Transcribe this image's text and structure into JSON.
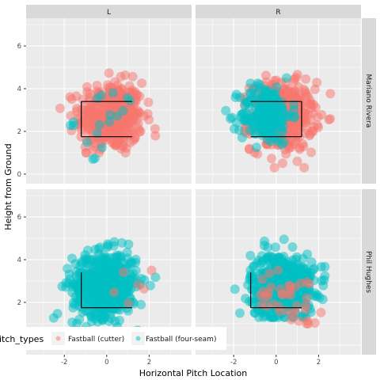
{
  "chart_data": {
    "type": "scatter",
    "xlabel": "Horizontal Pitch Location",
    "ylabel": "Height from Ground",
    "xlim": [
      -3.8,
      4.0
    ],
    "ylim": [
      -0.45,
      7.3
    ],
    "x_ticks": [
      -2,
      0,
      2
    ],
    "y_ticks": [
      0,
      2,
      4,
      6
    ],
    "grid": true,
    "facet_cols": [
      "L",
      "R"
    ],
    "facet_rows": [
      "Mariano Rivera",
      "Phil Hughes"
    ],
    "legend": {
      "title": "pitch_types",
      "position": "bottom-left",
      "entries": [
        {
          "label": "Fastball (cutter)",
          "color": "#F8766D"
        },
        {
          "label": "Fastball (four-seam)",
          "color": "#00BFC4"
        }
      ]
    },
    "strike_zone": {
      "x": [
        -1.2,
        1.2
      ],
      "y": [
        1.75,
        3.4
      ]
    },
    "panels": [
      {
        "row": "Mariano Rivera",
        "col": "L",
        "zone_sides": "L,T,B",
        "series": [
          {
            "name": "Fastball (cutter)",
            "n": 420,
            "cx": 0.2,
            "cy": 2.7,
            "sx": 0.75,
            "sy": 0.8,
            "x_range": [
              -2.2,
              2.5
            ],
            "y_range": [
              1.0,
              5.1
            ]
          },
          {
            "name": "Fastball (four-seam)",
            "n": 18,
            "cx": 0.1,
            "cy": 2.6,
            "sx": 0.8,
            "sy": 0.8,
            "x_range": [
              -1.8,
              2.0
            ],
            "y_range": [
              0.7,
              3.8
            ]
          }
        ]
      },
      {
        "row": "Mariano Rivera",
        "col": "R",
        "zone_sides": "R,T,B",
        "series": [
          {
            "name": "Fastball (cutter)",
            "n": 420,
            "cx": 0.3,
            "cy": 2.7,
            "sx": 0.75,
            "sy": 0.8,
            "x_range": [
              -1.5,
              2.6
            ],
            "y_range": [
              0.3,
              5.1
            ]
          },
          {
            "name": "Fastball (four-seam)",
            "n": 200,
            "cx": -0.5,
            "cy": 2.8,
            "sx": 0.6,
            "sy": 0.7,
            "x_range": [
              -2.5,
              1.0
            ],
            "y_range": [
              0.7,
              4.5
            ]
          }
        ]
      },
      {
        "row": "Phil Hughes",
        "col": "L",
        "zone_sides": "L,B",
        "series": [
          {
            "name": "Fastball (four-seam)",
            "n": 560,
            "cx": -0.1,
            "cy": 2.85,
            "sx": 0.75,
            "sy": 0.75,
            "x_range": [
              -2.5,
              2.3
            ],
            "y_range": [
              0.3,
              5.1
            ]
          },
          {
            "name": "Fastball (cutter)",
            "n": 6,
            "cx": 0.8,
            "cy": 2.5,
            "sx": 0.8,
            "sy": 0.6,
            "x_range": [
              -1.0,
              2.3
            ],
            "y_range": [
              1.0,
              3.5
            ]
          }
        ]
      },
      {
        "row": "Phil Hughes",
        "col": "R",
        "zone_sides": "L,B",
        "series": [
          {
            "name": "Fastball (four-seam)",
            "n": 520,
            "cx": 0.3,
            "cy": 2.8,
            "sx": 0.75,
            "sy": 0.75,
            "x_range": [
              -2.5,
              2.3
            ],
            "y_range": [
              1.3,
              5.8
            ]
          },
          {
            "name": "Fastball (cutter)",
            "n": 40,
            "cx": 0.6,
            "cy": 2.2,
            "sx": 0.8,
            "sy": 0.6,
            "x_range": [
              -0.8,
              2.8
            ],
            "y_range": [
              1.0,
              3.6
            ]
          }
        ]
      }
    ]
  }
}
